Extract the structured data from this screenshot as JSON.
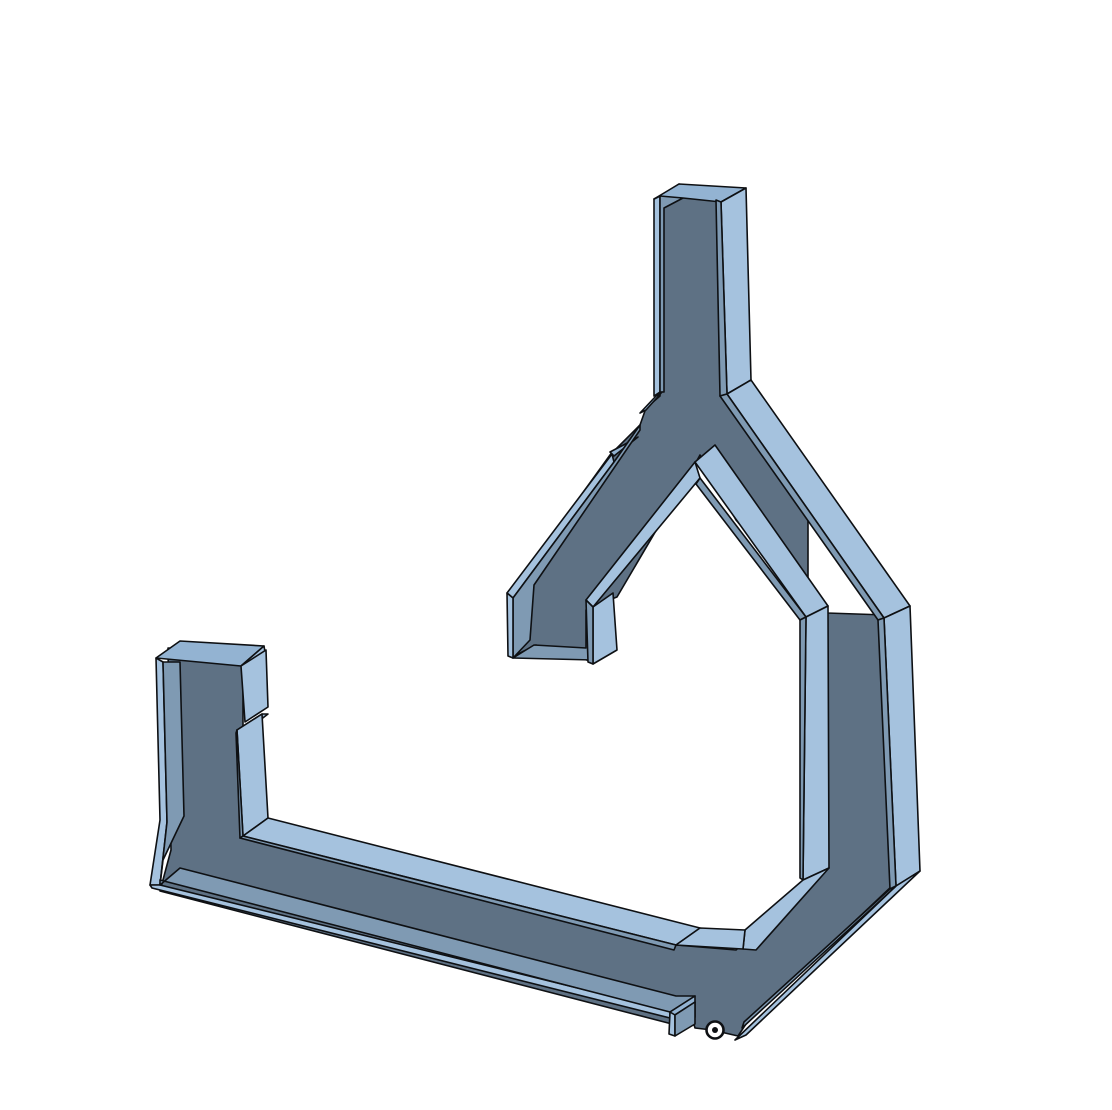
{
  "viewport": {
    "background": "#ffffff"
  },
  "model": {
    "part": "u-channel-bracket",
    "colors": {
      "floor": "#5e7184",
      "wall_top": "#93b3d2",
      "wall_face": "#a5c2de",
      "wall_inner": "#7f9ab3",
      "edge": "#0e1013"
    }
  },
  "origin_marker": {
    "icon": "origin-point-icon"
  }
}
